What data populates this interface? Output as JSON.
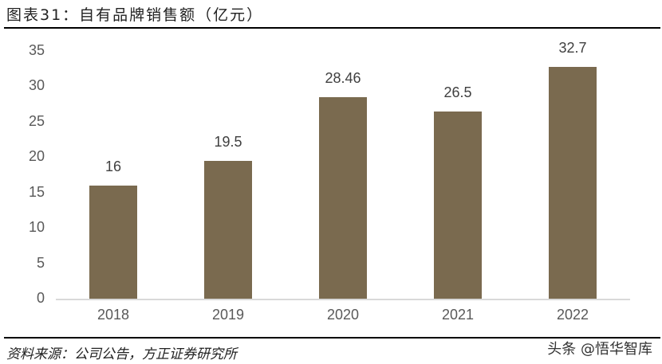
{
  "header": {
    "title": "图表31：自有品牌销售额（亿元）"
  },
  "footer": {
    "source": "资料来源：公司公告，方正证券研究所",
    "watermark": "头条 @悟华智库"
  },
  "colors": {
    "bar": "#7a6a4f",
    "axis": "#d9d9d9",
    "tick_text": "#595959"
  },
  "chart_data": {
    "type": "bar",
    "title": "自有品牌销售额（亿元）",
    "categories": [
      "2018",
      "2019",
      "2020",
      "2021",
      "2022"
    ],
    "values": [
      16,
      19.5,
      28.46,
      26.5,
      32.7
    ],
    "data_labels": [
      "16",
      "19.5",
      "28.46",
      "26.5",
      "32.7"
    ],
    "xlabel": "",
    "ylabel": "",
    "ylim": [
      0,
      35
    ],
    "yticks": [
      "0",
      "5",
      "10",
      "15",
      "20",
      "25",
      "30",
      "35"
    ],
    "grid": false,
    "legend": null
  }
}
